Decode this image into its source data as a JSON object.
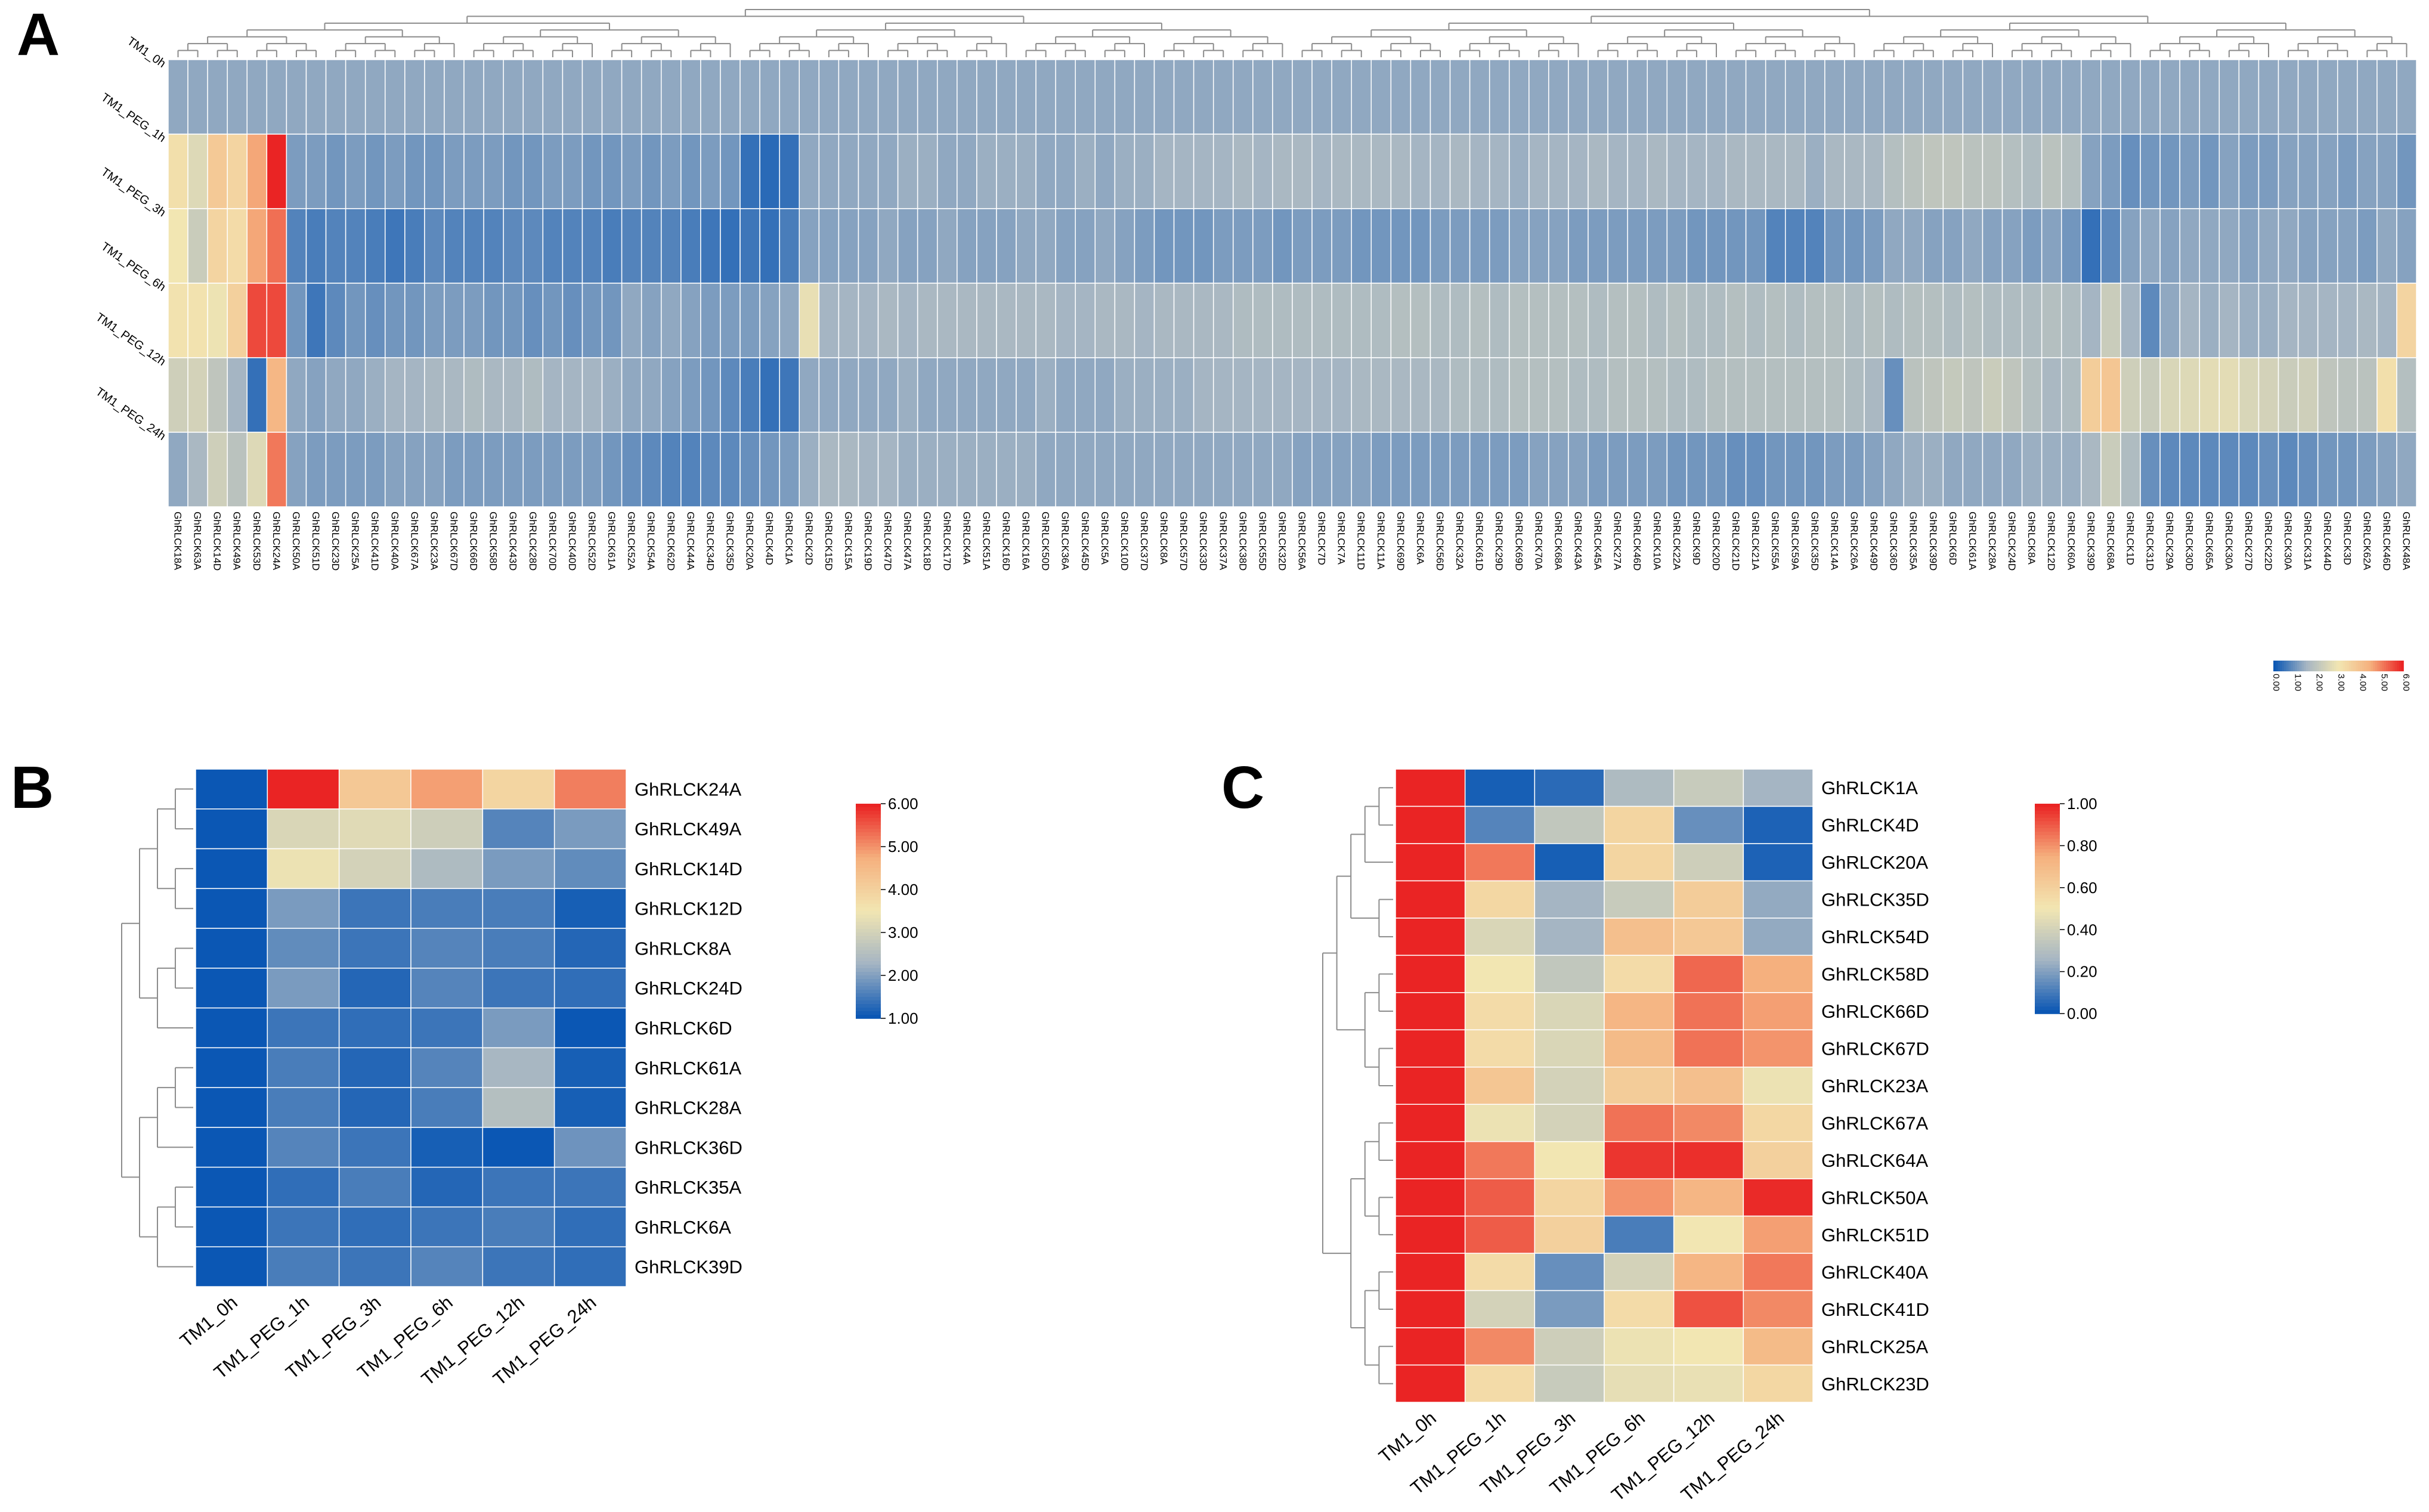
{
  "panel_labels": {
    "a": "A",
    "b": "B",
    "c": "C"
  },
  "colors": {
    "low": "#0b57b4",
    "mid_low": "#a5b5c3",
    "mid": "#f2e6b2",
    "mid_high": "#f5b07e",
    "high": "#ea2424",
    "grid_line": "#ffffff",
    "tree_line": "#8c8c8c",
    "text": "#000000"
  },
  "chart_data": [
    {
      "type": "heatmap",
      "panel": "A",
      "rows": [
        "TM1_0h",
        "TM1_PEG_1h",
        "TM1_PEG_3h",
        "TM1_PEG_6h",
        "TM1_PEG_12h",
        "TM1_PEG_24h"
      ],
      "columns": [
        "GhRLCK18A",
        "GhRLCK63A",
        "GhRLCK14D",
        "GhRLCK49A",
        "GhRLCK53D",
        "GhRLCK24A",
        "GhRLCK50A",
        "GhRLCK51D",
        "GhRLCK23D",
        "GhRLCK25A",
        "GhRLCK41D",
        "GhRLCK40A",
        "GhRLCK67A",
        "GhRLCK23A",
        "GhRLCK67D",
        "GhRLCK66D",
        "GhRLCK58D",
        "GhRLCK43D",
        "GhRLCK28D",
        "GhRLCK70D",
        "GhRLCK40D",
        "GhRLCK52D",
        "GhRLCK61A",
        "GhRLCK52A",
        "GhRLCK54A",
        "GhRLCK62D",
        "GhRLCK44A",
        "GhRLCK34D",
        "GhRLCK35D",
        "GhRLCK20A",
        "GhRLCK4D",
        "GhRLCK1A",
        "GhRLCK2D",
        "GhRLCK15D",
        "GhRLCK15A",
        "GhRLCK19D",
        "GhRLCK47D",
        "GhRLCK47A",
        "GhRLCK18D",
        "GhRLCK17D",
        "GhRLCK4A",
        "GhRLCK51A",
        "GhRLCK16D",
        "GhRLCK16A",
        "GhRLCK50D",
        "GhRLCK36A",
        "GhRLCK45D",
        "GhRLCK5A",
        "GhRLCK10D",
        "GhRLCK37D",
        "GhRLCK8A",
        "GhRLCK57D",
        "GhRLCK33D",
        "GhRLCK37A",
        "GhRLCK38D",
        "GhRLCK55D",
        "GhRLCK32D",
        "GhRLCK56A",
        "GhRLCK7D",
        "GhRLCK7A",
        "GhRLCK11D",
        "GhRLCK11A",
        "GhRLCK69D",
        "GhRLCK6A",
        "GhRLCK56D",
        "GhRLCK32A",
        "GhRLCK61D",
        "GhRLCK29D",
        "GhRLCK69D",
        "GhRLCK70A",
        "GhRLCK68A",
        "GhRLCK43A",
        "GhRLCK45A",
        "GhRLCK27A",
        "GhRLCK46D",
        "GhRLCK10A",
        "GhRLCK22A",
        "GhRLCK9D",
        "GhRLCK20D",
        "GhRLCK21D",
        "GhRLCK21A",
        "GhRLCK55A",
        "GhRLCK59A",
        "GhRLCK35D",
        "GhRLCK14A",
        "GhRLCK26A",
        "GhRLCK49D",
        "GhRLCK36D",
        "GhRLCK35A",
        "GhRLCK39D",
        "GhRLCK6D",
        "GhRLCK61A",
        "GhRLCK28A",
        "GhRLCK24D",
        "GhRLCK8A",
        "GhRLCK12D",
        "GhRLCK60A",
        "GhRLCK39D",
        "GhRLCK68A",
        "GhRLCK1D",
        "GhRLCK31D",
        "GhRLCK29A",
        "GhRLCK30D",
        "GhRLCK65A",
        "GhRLCK30A",
        "GhRLCK27D",
        "GhRLCK22D",
        "GhRLCK30A",
        "GhRLCK31A",
        "GhRLCK44D",
        "GhRLCK3D",
        "GhRLCK62A",
        "GhRLCK46D",
        "GhRLCK48A"
      ],
      "scale": {
        "min": 0,
        "max": 6,
        "ticks": [
          "0.00",
          "1.00",
          "2.00",
          "3.00",
          "4.00",
          "5.00",
          "6.00"
        ]
      },
      "values": [
        [
          1.3,
          1.3,
          1.3,
          1.3,
          1.3,
          1.3,
          1.3,
          1.3,
          1.3,
          1.3,
          1.3,
          1.3,
          1.3,
          1.3,
          1.3,
          1.3,
          1.3,
          1.3,
          1.3,
          1.3,
          1.3,
          1.3,
          1.3,
          1.3,
          1.3,
          1.3,
          1.3,
          1.3,
          1.3,
          1.3,
          1.3,
          1.3,
          1.3,
          1.3,
          1.3,
          1.3,
          1.3,
          1.3,
          1.3,
          1.3,
          1.3,
          1.3,
          1.3,
          1.3,
          1.3,
          1.3,
          1.3,
          1.3,
          1.3,
          1.3,
          1.3,
          1.3,
          1.3,
          1.3,
          1.3,
          1.3,
          1.3,
          1.3,
          1.3,
          1.3,
          1.3,
          1.3,
          1.3,
          1.3,
          1.3,
          1.3,
          1.3,
          1.3,
          1.3,
          1.3,
          1.3,
          1.3,
          1.3,
          1.3,
          1.3,
          1.3,
          1.3,
          1.3,
          1.3,
          1.3,
          1.3,
          1.3,
          1.3,
          1.3,
          1.3,
          1.3,
          1.3,
          1.3,
          1.3,
          1.3,
          1.3,
          1.3,
          1.3,
          1.3,
          1.3,
          1.3,
          1.3,
          1.3,
          1.3,
          1.3,
          1.3,
          1.3,
          1.3,
          1.3,
          1.3,
          1.3,
          1.3,
          1.3,
          1.3,
          1.3,
          1.3,
          1.3,
          1.3,
          1.3
        ],
        [
          3.2,
          2.6,
          3.8,
          3.5,
          4.6,
          6.0,
          1.1,
          1.1,
          1.0,
          1.1,
          1.0,
          1.1,
          1.0,
          1.0,
          1.1,
          1.1,
          1.1,
          1.0,
          1.0,
          1.1,
          1.1,
          1.0,
          1.0,
          1.1,
          1.0,
          1.1,
          1.0,
          1.1,
          1.0,
          0.4,
          0.3,
          0.4,
          1.3,
          1.3,
          1.3,
          1.3,
          1.3,
          1.4,
          1.4,
          1.3,
          1.3,
          1.4,
          1.4,
          1.4,
          1.3,
          1.3,
          1.4,
          1.3,
          1.4,
          1.4,
          1.5,
          1.5,
          1.5,
          1.5,
          1.6,
          1.5,
          1.6,
          1.6,
          1.5,
          1.6,
          1.6,
          1.6,
          1.6,
          1.5,
          1.5,
          1.6,
          1.5,
          1.5,
          1.4,
          1.5,
          1.5,
          1.5,
          1.6,
          1.5,
          1.5,
          1.6,
          1.5,
          1.5,
          1.5,
          1.6,
          1.6,
          1.6,
          1.6,
          1.4,
          1.6,
          1.6,
          1.6,
          1.8,
          1.9,
          2.0,
          2.0,
          1.9,
          1.9,
          1.8,
          1.7,
          1.9,
          1.8,
          1.2,
          1.1,
          0.9,
          1.0,
          1.0,
          1.1,
          1.0,
          1.2,
          1.1,
          1.1,
          1.2,
          1.2,
          1.2,
          1.1,
          1.2,
          1.2,
          1.0
        ],
        [
          3.0,
          2.2,
          3.5,
          3.3,
          4.6,
          5.2,
          0.7,
          0.6,
          0.7,
          0.7,
          0.6,
          0.5,
          0.6,
          0.8,
          0.7,
          0.7,
          0.7,
          0.8,
          0.8,
          0.7,
          0.7,
          0.7,
          0.6,
          0.7,
          0.7,
          0.7,
          0.6,
          0.5,
          0.4,
          0.5,
          0.4,
          0.6,
          1.2,
          1.2,
          1.2,
          1.2,
          1.3,
          1.2,
          1.2,
          1.3,
          1.2,
          1.2,
          1.2,
          1.3,
          1.3,
          1.2,
          1.2,
          1.3,
          1.2,
          1.1,
          1.0,
          1.0,
          1.0,
          1.1,
          1.1,
          1.1,
          1.0,
          1.1,
          1.1,
          1.1,
          1.0,
          1.0,
          1.0,
          1.0,
          1.1,
          1.1,
          1.1,
          1.1,
          1.2,
          1.2,
          1.2,
          1.1,
          1.1,
          1.1,
          1.1,
          1.1,
          1.1,
          1.0,
          1.0,
          1.0,
          1.0,
          0.7,
          0.7,
          0.7,
          1.0,
          1.0,
          1.1,
          1.3,
          1.3,
          1.2,
          1.2,
          1.3,
          1.2,
          1.2,
          1.1,
          1.2,
          1.0,
          0.4,
          0.8,
          1.2,
          1.3,
          1.2,
          1.3,
          1.3,
          1.3,
          1.2,
          1.3,
          1.3,
          1.2,
          1.2,
          1.2,
          1.1,
          1.3,
          1.2
        ],
        [
          3.1,
          3.1,
          2.9,
          3.6,
          5.6,
          5.6,
          1.0,
          0.5,
          0.8,
          1.0,
          0.9,
          1.0,
          1.0,
          1.1,
          1.1,
          1.1,
          1.0,
          1.0,
          0.9,
          1.0,
          0.9,
          1.0,
          1.0,
          1.3,
          1.2,
          1.3,
          1.2,
          1.1,
          1.1,
          1.1,
          1.2,
          1.3,
          2.8,
          1.5,
          1.5,
          1.5,
          1.6,
          1.5,
          1.6,
          1.6,
          1.6,
          1.6,
          1.6,
          1.6,
          1.6,
          1.5,
          1.5,
          1.6,
          1.6,
          1.5,
          1.6,
          1.6,
          1.6,
          1.6,
          1.7,
          1.7,
          1.7,
          1.7,
          1.7,
          1.7,
          1.7,
          1.7,
          1.8,
          1.8,
          1.7,
          1.7,
          1.8,
          1.7,
          1.8,
          1.8,
          1.8,
          1.8,
          1.7,
          1.8,
          1.8,
          1.7,
          1.8,
          1.7,
          1.7,
          1.8,
          1.7,
          1.8,
          1.7,
          1.8,
          1.8,
          1.7,
          1.8,
          1.7,
          1.8,
          1.8,
          1.7,
          1.8,
          1.7,
          1.7,
          1.7,
          1.8,
          1.7,
          1.5,
          2.2,
          1.5,
          0.8,
          1.3,
          1.5,
          1.4,
          1.5,
          1.4,
          1.4,
          1.5,
          1.5,
          1.5,
          1.5,
          1.6,
          1.5,
          3.5
        ],
        [
          2.3,
          2.4,
          2.0,
          1.5,
          0.4,
          4.3,
          1.3,
          1.2,
          1.3,
          1.3,
          1.4,
          1.5,
          1.5,
          1.6,
          1.6,
          1.7,
          1.6,
          1.6,
          1.7,
          1.5,
          1.5,
          1.5,
          1.4,
          1.3,
          1.3,
          1.2,
          1.1,
          1.0,
          0.8,
          0.6,
          0.4,
          0.5,
          1.3,
          1.3,
          1.3,
          1.3,
          1.3,
          1.4,
          1.3,
          1.3,
          1.3,
          1.3,
          1.3,
          1.3,
          1.4,
          1.3,
          1.3,
          1.3,
          1.4,
          1.4,
          1.4,
          1.4,
          1.5,
          1.5,
          1.5,
          1.5,
          1.5,
          1.5,
          1.5,
          1.5,
          1.6,
          1.6,
          1.6,
          1.6,
          1.6,
          1.7,
          1.7,
          1.7,
          1.8,
          1.8,
          1.8,
          1.7,
          1.7,
          1.8,
          1.8,
          1.8,
          1.7,
          1.7,
          1.8,
          1.8,
          1.8,
          1.8,
          1.8,
          1.8,
          1.8,
          1.7,
          1.6,
          0.9,
          1.9,
          2.0,
          2.1,
          2.0,
          2.2,
          2.0,
          1.8,
          1.6,
          1.7,
          3.7,
          3.9,
          2.3,
          2.2,
          2.5,
          2.6,
          2.7,
          2.7,
          2.5,
          2.4,
          2.2,
          2.3,
          2.0,
          1.9,
          1.9,
          3.2,
          1.8
        ],
        [
          1.3,
          1.6,
          2.3,
          1.9,
          2.6,
          5.1,
          1.2,
          1.1,
          1.1,
          1.1,
          1.1,
          1.2,
          1.2,
          1.2,
          1.1,
          1.1,
          1.1,
          1.1,
          1.1,
          1.1,
          1.1,
          1.1,
          1.0,
          0.9,
          0.8,
          0.7,
          0.7,
          0.8,
          0.8,
          0.9,
          1.0,
          1.1,
          1.4,
          1.6,
          1.6,
          1.5,
          1.5,
          1.4,
          1.4,
          1.4,
          1.4,
          1.4,
          1.4,
          1.4,
          1.3,
          1.3,
          1.3,
          1.3,
          1.3,
          1.3,
          1.3,
          1.3,
          1.3,
          1.3,
          1.3,
          1.3,
          1.3,
          1.2,
          1.2,
          1.2,
          1.2,
          1.1,
          1.1,
          1.1,
          1.1,
          1.1,
          1.1,
          1.1,
          1.1,
          1.2,
          1.2,
          1.2,
          1.1,
          1.1,
          1.1,
          1.1,
          1.0,
          1.0,
          1.0,
          0.9,
          0.9,
          1.0,
          1.0,
          1.0,
          1.1,
          1.1,
          1.2,
          1.3,
          1.4,
          1.4,
          1.3,
          1.3,
          1.3,
          1.3,
          1.4,
          1.4,
          1.4,
          1.6,
          2.2,
          1.7,
          0.9,
          0.8,
          0.8,
          0.8,
          0.8,
          0.8,
          0.9,
          0.8,
          0.9,
          1.0,
          1.0,
          1.1,
          1.2,
          1.3
        ]
      ]
    },
    {
      "type": "heatmap",
      "panel": "B",
      "rows": [
        "GhRLCK24A",
        "GhRLCK49A",
        "GhRLCK14D",
        "GhRLCK12D",
        "GhRLCK8A",
        "GhRLCK24D",
        "GhRLCK6D",
        "GhRLCK61A",
        "GhRLCK28A",
        "GhRLCK36D",
        "GhRLCK35A",
        "GhRLCK6A",
        "GhRLCK39D"
      ],
      "columns": [
        "TM1_0h",
        "TM1_PEG_1h",
        "TM1_PEG_3h",
        "TM1_PEG_6h",
        "TM1_PEG_12h",
        "TM1_PEG_24h"
      ],
      "scale": {
        "min": 1,
        "max": 6,
        "ticks": [
          "1.00",
          "2.00",
          "3.00",
          "4.00",
          "5.00",
          "6.00"
        ]
      },
      "values": [
        [
          1.0,
          6.0,
          4.2,
          4.9,
          3.9,
          5.2
        ],
        [
          1.0,
          3.1,
          3.2,
          2.9,
          1.6,
          1.9
        ],
        [
          1.0,
          3.4,
          3.0,
          2.4,
          1.9,
          1.7
        ],
        [
          1.0,
          1.9,
          1.4,
          1.5,
          1.5,
          1.1
        ],
        [
          1.0,
          1.7,
          1.4,
          1.6,
          1.5,
          1.2
        ],
        [
          1.0,
          1.9,
          1.2,
          1.6,
          1.4,
          1.3
        ],
        [
          1.0,
          1.4,
          1.3,
          1.4,
          1.9,
          1.0
        ],
        [
          1.0,
          1.5,
          1.2,
          1.6,
          2.3,
          1.1
        ],
        [
          1.0,
          1.5,
          1.2,
          1.5,
          2.5,
          1.1
        ],
        [
          1.0,
          1.6,
          1.4,
          1.1,
          1.0,
          1.8
        ],
        [
          1.0,
          1.3,
          1.5,
          1.2,
          1.4,
          1.4
        ],
        [
          1.0,
          1.4,
          1.3,
          1.4,
          1.5,
          1.3
        ],
        [
          1.0,
          1.5,
          1.4,
          1.6,
          1.4,
          1.3
        ]
      ]
    },
    {
      "type": "heatmap",
      "panel": "C",
      "rows": [
        "GhRLCK1A",
        "GhRLCK4D",
        "GhRLCK20A",
        "GhRLCK35D",
        "GhRLCK54D",
        "GhRLCK58D",
        "GhRLCK66D",
        "GhRLCK67D",
        "GhRLCK23A",
        "GhRLCK67A",
        "GhRLCK64A",
        "GhRLCK50A",
        "GhRLCK51D",
        "GhRLCK40A",
        "GhRLCK41D",
        "GhRLCK25A",
        "GhRLCK23D"
      ],
      "columns": [
        "TM1_0h",
        "TM1_PEG_1h",
        "TM1_PEG_3h",
        "TM1_PEG_6h",
        "TM1_PEG_12h",
        "TM1_PEG_24h"
      ],
      "scale": {
        "min": 0,
        "max": 1,
        "ticks": [
          "0.00",
          "0.20",
          "0.40",
          "0.60",
          "0.80",
          "1.00"
        ]
      },
      "values": [
        [
          1.0,
          0.02,
          0.05,
          0.28,
          0.36,
          0.25
        ],
        [
          1.0,
          0.12,
          0.34,
          0.58,
          0.15,
          0.03
        ],
        [
          1.0,
          0.85,
          0.02,
          0.58,
          0.38,
          0.03
        ],
        [
          1.0,
          0.57,
          0.25,
          0.36,
          0.62,
          0.22
        ],
        [
          1.0,
          0.42,
          0.25,
          0.68,
          0.64,
          0.22
        ],
        [
          1.0,
          0.5,
          0.34,
          0.55,
          0.88,
          0.75
        ],
        [
          1.0,
          0.55,
          0.42,
          0.72,
          0.86,
          0.78
        ],
        [
          1.0,
          0.55,
          0.42,
          0.7,
          0.86,
          0.8
        ],
        [
          1.0,
          0.65,
          0.4,
          0.62,
          0.68,
          0.48
        ],
        [
          1.0,
          0.48,
          0.4,
          0.86,
          0.82,
          0.57
        ],
        [
          1.0,
          0.85,
          0.5,
          0.97,
          0.98,
          0.6
        ],
        [
          1.0,
          0.9,
          0.58,
          0.8,
          0.72,
          0.99
        ],
        [
          1.0,
          0.9,
          0.6,
          0.1,
          0.5,
          0.78
        ],
        [
          1.0,
          0.55,
          0.15,
          0.4,
          0.72,
          0.85
        ],
        [
          1.0,
          0.4,
          0.18,
          0.55,
          0.92,
          0.82
        ],
        [
          1.0,
          0.82,
          0.38,
          0.48,
          0.5,
          0.7
        ],
        [
          1.0,
          0.55,
          0.36,
          0.46,
          0.47,
          0.57
        ]
      ]
    }
  ]
}
